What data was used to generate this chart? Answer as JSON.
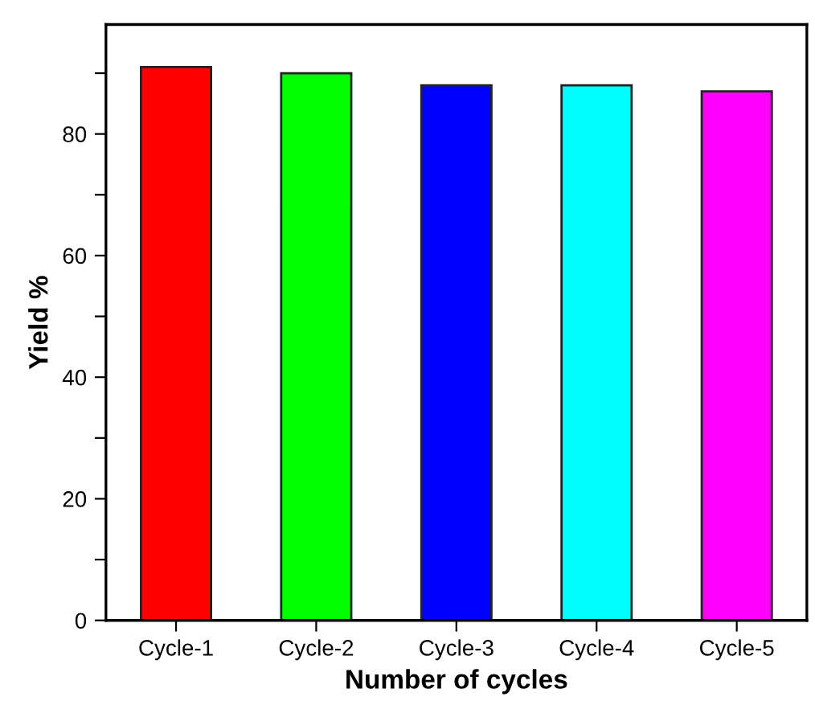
{
  "chart_data": {
    "type": "bar",
    "xlabel": "Number of cycles",
    "ylabel": "Yield %",
    "categories": [
      "Cycle-1",
      "Cycle-2",
      "Cycle-3",
      "Cycle-4",
      "Cycle-5"
    ],
    "values": [
      91,
      90,
      88,
      88,
      87
    ],
    "colors": [
      "#ff0000",
      "#00ff00",
      "#0000ff",
      "#00ffff",
      "#ff00ff"
    ],
    "ylim": [
      0,
      98
    ],
    "yticks": [
      0,
      {
        "value": 10,
        "label": null
      },
      20,
      {
        "value": 30,
        "label": null
      },
      40,
      {
        "value": 50,
        "label": null
      },
      60,
      {
        "value": 70,
        "label": null
      },
      80,
      {
        "value": 90,
        "label": null
      }
    ],
    "grid": false,
    "legend": false
  }
}
